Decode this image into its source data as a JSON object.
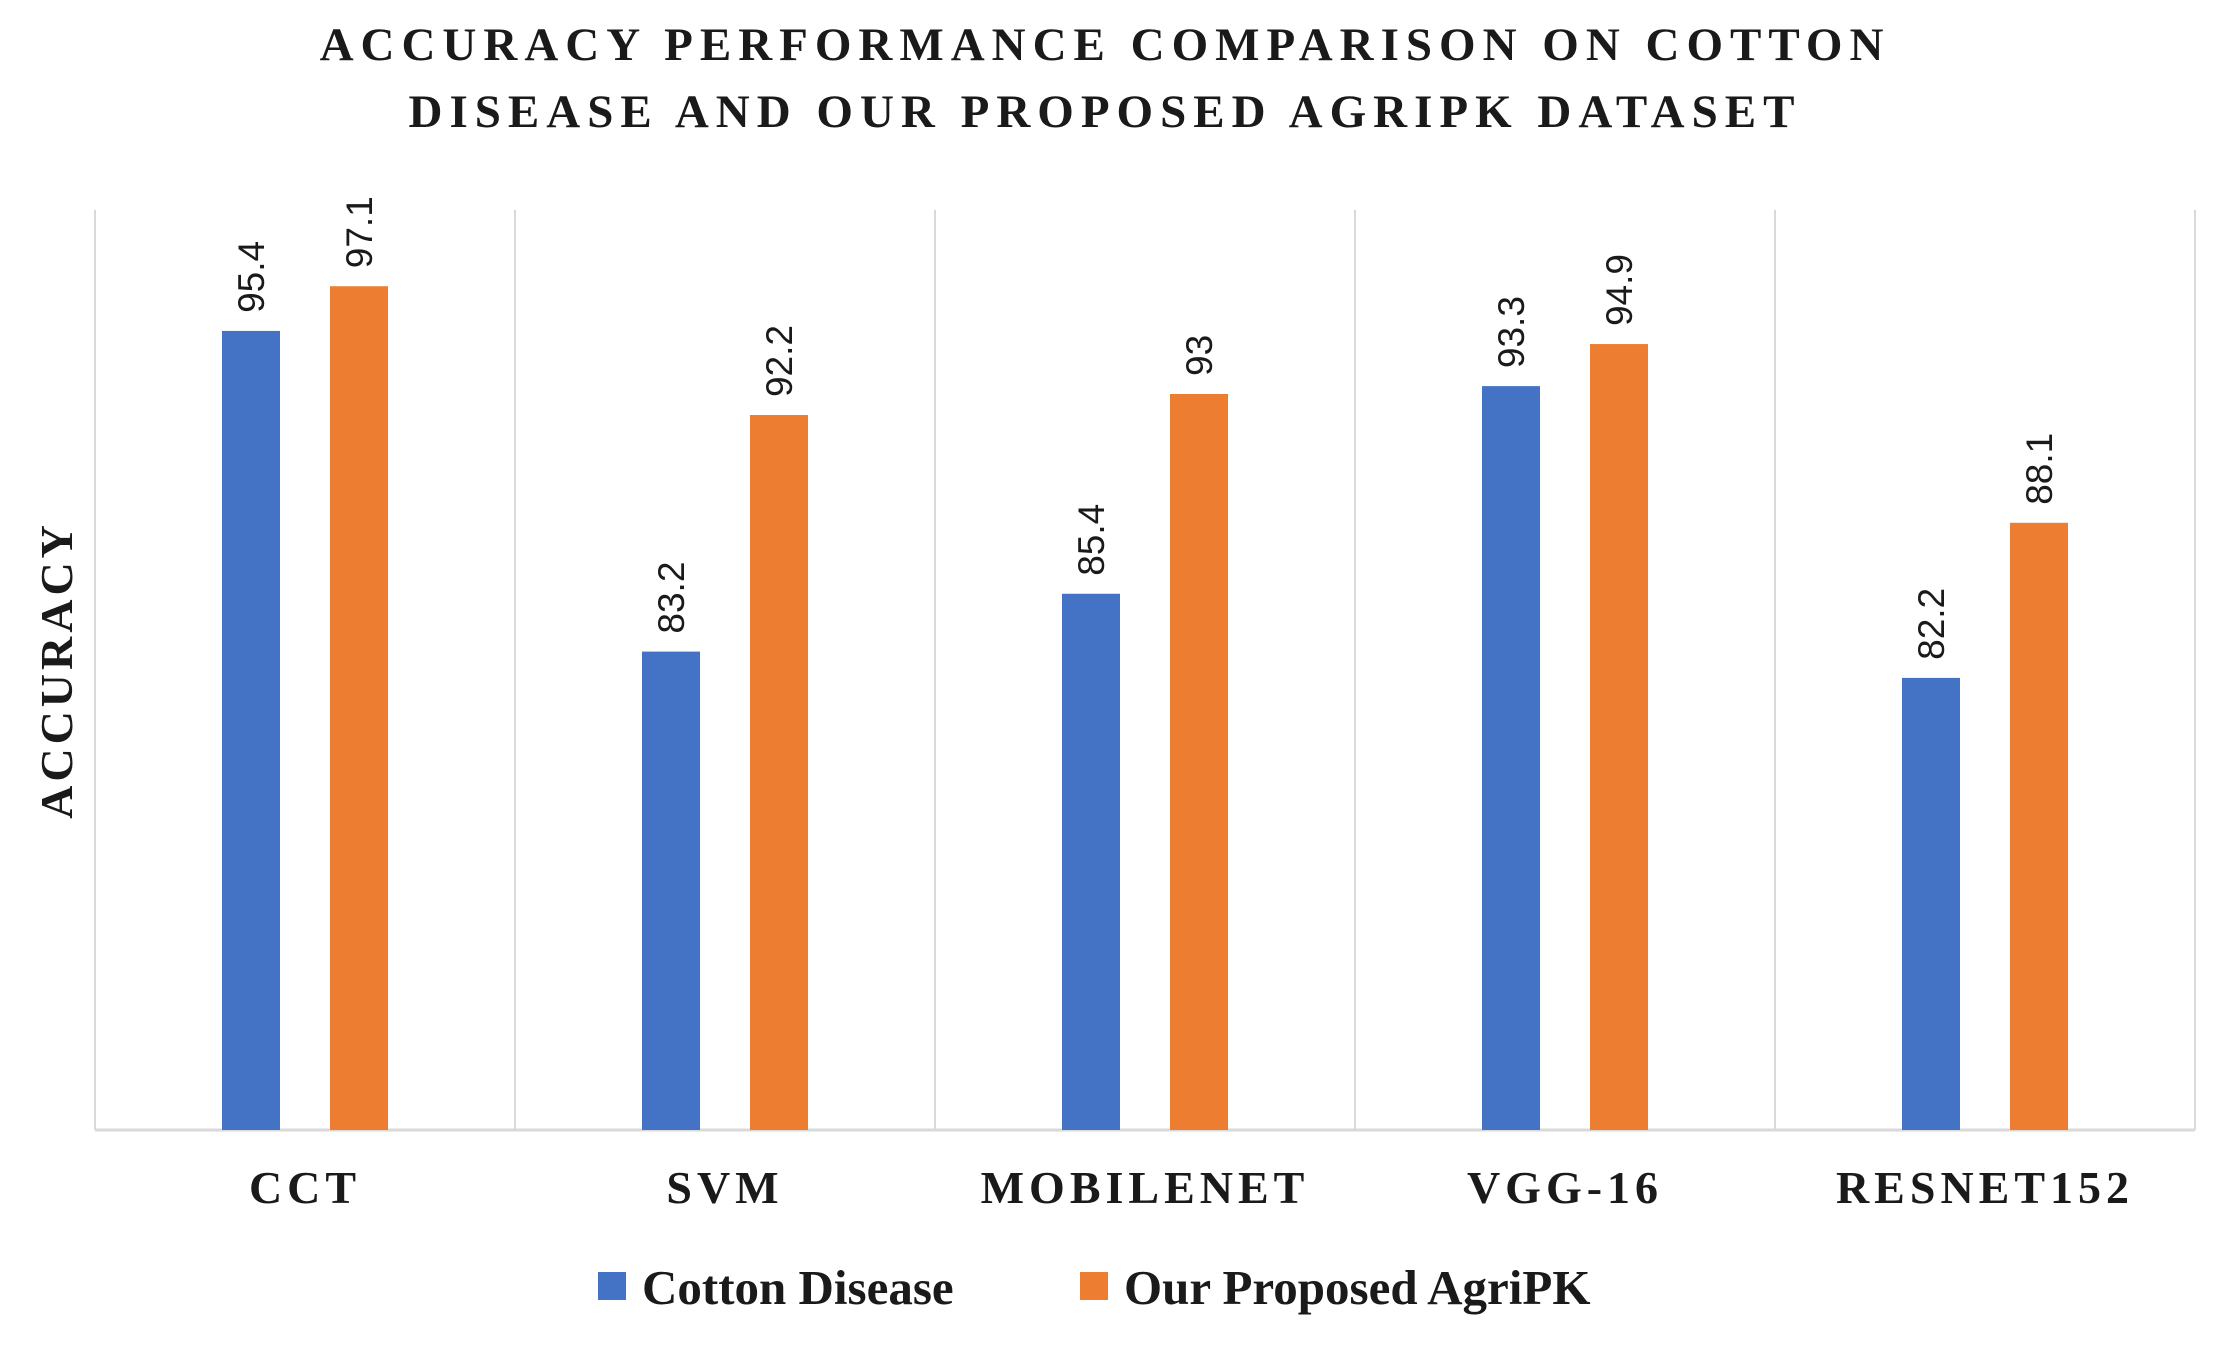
{
  "chart_data": {
    "type": "bar",
    "title_lines": [
      "ACCURACY PERFORMANCE COMPARISON ON COTTON",
      "DISEASE AND  OUR PROPOSED AGRIPK DATASET"
    ],
    "xlabel": "",
    "ylabel": "ACCURACY",
    "ylim": [
      65,
      100
    ],
    "grid": false,
    "legend_position": "bottom",
    "categories": [
      "CCT",
      "SVM",
      "MOBILENET",
      "VGG-16",
      "RESNET152"
    ],
    "series": [
      {
        "name": "Cotton Disease",
        "color": "#4472C4",
        "values": [
          95.4,
          83.2,
          85.4,
          93.3,
          82.2
        ]
      },
      {
        "name": "Our Proposed AgriPK",
        "color": "#ED7D31",
        "values": [
          97.1,
          92.2,
          93,
          94.9,
          88.1
        ]
      }
    ]
  }
}
